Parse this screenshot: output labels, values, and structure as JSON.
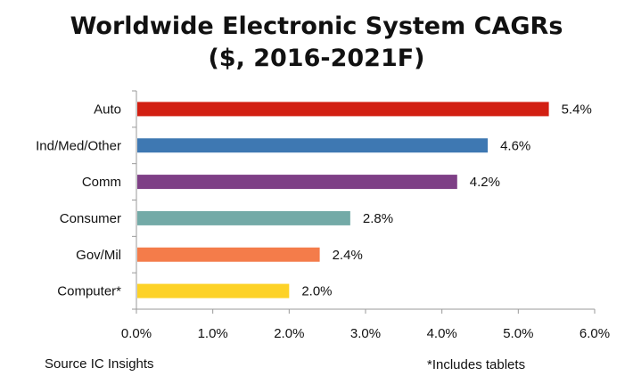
{
  "chart_data": {
    "type": "bar",
    "orientation": "horizontal",
    "title": "Worldwide Electronic System CAGRs",
    "subtitle": "($, 2016-2021F)",
    "categories": [
      "Auto",
      "Ind/Med/Other",
      "Comm",
      "Consumer",
      "Gov/Mil",
      "Computer*"
    ],
    "values": [
      5.4,
      4.6,
      4.2,
      2.8,
      2.4,
      2.0
    ],
    "value_labels": [
      "5.4%",
      "4.6%",
      "4.2%",
      "2.8%",
      "2.4%",
      "2.0%"
    ],
    "colors": [
      "#d21f12",
      "#3e78b2",
      "#7e3f86",
      "#73aaa7",
      "#f47c4a",
      "#fdd227"
    ],
    "xlim": [
      0,
      6
    ],
    "x_ticks": [
      0,
      1,
      2,
      3,
      4,
      5,
      6
    ],
    "x_tick_labels": [
      "0.0%",
      "1.0%",
      "2.0%",
      "3.0%",
      "4.0%",
      "5.0%",
      "6.0%"
    ],
    "grid": false,
    "legend": "none"
  },
  "footer": {
    "source": "Source  IC Insights",
    "note": "*Includes tablets"
  }
}
